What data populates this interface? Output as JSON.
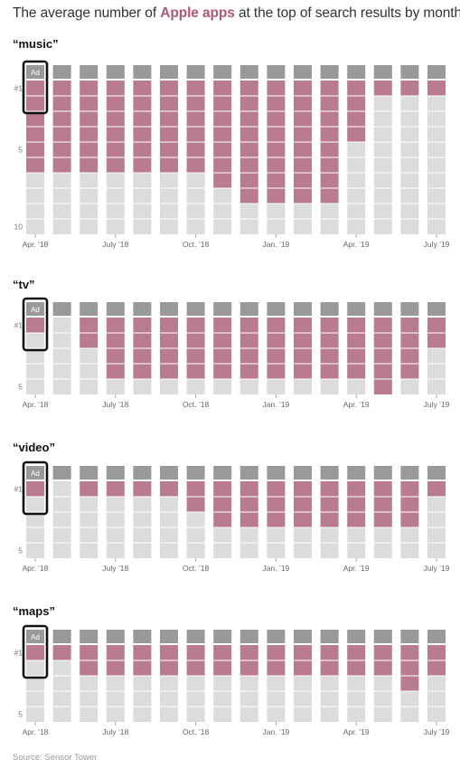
{
  "title_prefix": "The average number of ",
  "title_highlight": "Apple apps",
  "title_suffix": " at the top of search results by month",
  "source": "Source: Sensor Tower",
  "colors": {
    "apple": "#b97b91",
    "ad": "#999999",
    "other": "#dcdcdc",
    "phone": "#111111",
    "highlight_text": "#b0567a"
  },
  "phone_ad_label": "Ad",
  "chart_data": [
    {
      "type": "bar",
      "title": "“music”",
      "slots": 10,
      "y_tick_labels": [
        "#1",
        "5",
        "10"
      ],
      "x_tick_labels": [
        "Apr. ’18",
        "July ’18",
        "Oct. ’18",
        "Jan. ’19",
        "Apr. ’19",
        "July ’19"
      ],
      "categories": [
        "Apr. ’18",
        "May ’18",
        "Jun. ’18",
        "Jul. ’18",
        "Aug. ’18",
        "Sep. ’18",
        "Oct. ’18",
        "Nov. ’18",
        "Dec. ’18",
        "Jan. ’19",
        "Feb. ’19",
        "Mar. ’19",
        "Apr. ’19",
        "May ’19",
        "Jun. ’19",
        "Jul. ’19"
      ],
      "series": [
        {
          "values": [
            6,
            6,
            6,
            6,
            6,
            6,
            6,
            7,
            8,
            8,
            8,
            8,
            4,
            1,
            1,
            1
          ]
        }
      ]
    },
    {
      "type": "bar",
      "title": "“tv”",
      "slots": 5,
      "y_tick_labels": [
        "#1",
        "5"
      ],
      "x_tick_labels": [
        "Apr. ’18",
        "July ’18",
        "Oct. ’18",
        "Jan. ’19",
        "Apr. ’19",
        "July ’19"
      ],
      "categories": [
        "Apr. ’18",
        "May ’18",
        "Jun. ’18",
        "Jul. ’18",
        "Aug. ’18",
        "Sep. ’18",
        "Oct. ’18",
        "Nov. ’18",
        "Dec. ’18",
        "Jan. ’19",
        "Feb. ’19",
        "Mar. ’19",
        "Apr. ’19",
        "May ’19",
        "Jun. ’19",
        "Jul. ’19"
      ],
      "series": [
        {
          "values": [
            1,
            0,
            2,
            4,
            4,
            4,
            4,
            4,
            4,
            4,
            4,
            4,
            4,
            5,
            4,
            2
          ]
        }
      ]
    },
    {
      "type": "bar",
      "title": "“video”",
      "slots": 5,
      "y_tick_labels": [
        "#1",
        "5"
      ],
      "x_tick_labels": [
        "Apr. ’18",
        "July ’18",
        "Oct. ’18",
        "Jan. ’19",
        "Apr. ’19",
        "July ’19"
      ],
      "categories": [
        "Apr. ’18",
        "May ’18",
        "Jun. ’18",
        "Jul. ’18",
        "Aug. ’18",
        "Sep. ’18",
        "Oct. ’18",
        "Nov. ’18",
        "Dec. ’18",
        "Jan. ’19",
        "Feb. ’19",
        "Mar. ’19",
        "Apr. ’19",
        "May ’19",
        "Jun. ’19",
        "Jul. ’19"
      ],
      "series": [
        {
          "values": [
            1,
            0,
            1,
            1,
            1,
            1,
            2,
            3,
            3,
            3,
            3,
            3,
            3,
            3,
            3,
            1
          ]
        }
      ]
    },
    {
      "type": "bar",
      "title": "“maps”",
      "slots": 5,
      "y_tick_labels": [
        "#1",
        "5"
      ],
      "x_tick_labels": [
        "Apr. ’18",
        "July ’18",
        "Oct. ’18",
        "Jan. ’19",
        "Apr. ’19",
        "July ’19"
      ],
      "categories": [
        "Apr. ’18",
        "May ’18",
        "Jun. ’18",
        "Jul. ’18",
        "Aug. ’18",
        "Sep. ’18",
        "Oct. ’18",
        "Nov. ’18",
        "Dec. ’18",
        "Jan. ’19",
        "Feb. ’19",
        "Mar. ’19",
        "Apr. ’19",
        "May ’19",
        "Jun. ’19",
        "Jul. ’19"
      ],
      "series": [
        {
          "values": [
            1,
            1,
            2,
            2,
            2,
            2,
            2,
            2,
            2,
            2,
            2,
            2,
            2,
            2,
            3,
            2
          ]
        }
      ]
    }
  ]
}
